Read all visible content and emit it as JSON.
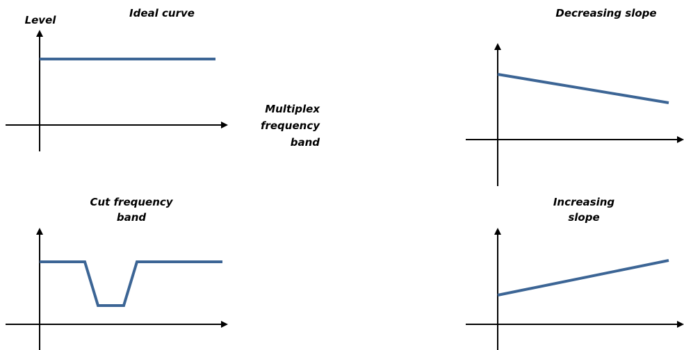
{
  "colors": {
    "curve": "#3c6595",
    "axis": "#000000"
  },
  "panels": {
    "ideal": {
      "title": "Ideal curve",
      "y_axis_label": "Level",
      "x_axis_label": [
        "Multiplex",
        "frequency",
        "band"
      ]
    },
    "decreasing": {
      "title": "Decreasing slope"
    },
    "cut": {
      "title": [
        "Cut frequency",
        "band"
      ]
    },
    "increasing": {
      "title": [
        "Increasing",
        "slope"
      ]
    }
  }
}
